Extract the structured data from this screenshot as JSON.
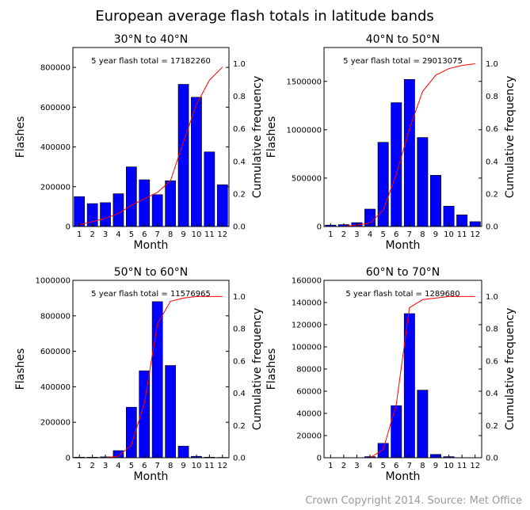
{
  "figure": {
    "title": "European average flash totals in latitude bands",
    "credit": "Crown Copyright 2014. Source: Met Office"
  },
  "colors": {
    "bar": "#0000ff",
    "line": "#ff0000",
    "bar_edge": "#000000"
  },
  "chart_data": [
    {
      "type": "bar",
      "title": "30°N to 40°N",
      "annotation": "5 year flash total = 17182260",
      "xlabel": "Month",
      "ylabel": "Flashes",
      "y2label": "Cumulative frequency",
      "categories": [
        "1",
        "2",
        "3",
        "4",
        "5",
        "6",
        "7",
        "8",
        "9",
        "10",
        "11",
        "12"
      ],
      "series": [
        {
          "values": [
            150000,
            115000,
            120000,
            165000,
            300000,
            235000,
            160000,
            230000,
            715000,
            650000,
            375000,
            210000
          ]
        }
      ],
      "cumulative": [
        0.01,
        0.03,
        0.05,
        0.08,
        0.13,
        0.17,
        0.21,
        0.28,
        0.52,
        0.75,
        0.9,
        0.98
      ],
      "ylim": [
        0,
        900000
      ],
      "yticks": [
        0,
        200000,
        400000,
        600000,
        800000
      ],
      "y2lim": [
        0,
        1.1
      ],
      "y2ticks": [
        0.0,
        0.2,
        0.4,
        0.6,
        0.8,
        1.0
      ]
    },
    {
      "type": "bar",
      "title": "40°N to 50°N",
      "annotation": "5 year flash total = 29013075",
      "xlabel": "Month",
      "ylabel": "Flashes",
      "y2label": "Cumulative frequency",
      "categories": [
        "1",
        "2",
        "3",
        "4",
        "5",
        "6",
        "7",
        "8",
        "9",
        "10",
        "11",
        "12"
      ],
      "series": [
        {
          "values": [
            15000,
            20000,
            40000,
            180000,
            870000,
            1280000,
            1520000,
            920000,
            530000,
            210000,
            120000,
            50000
          ]
        }
      ],
      "cumulative": [
        0.0,
        0.0,
        0.01,
        0.02,
        0.1,
        0.32,
        0.6,
        0.83,
        0.93,
        0.97,
        0.99,
        1.0
      ],
      "ylim": [
        0,
        1850000
      ],
      "yticks": [
        0,
        500000,
        1000000,
        1500000
      ],
      "y2lim": [
        0,
        1.1
      ],
      "y2ticks": [
        0.0,
        0.2,
        0.4,
        0.6,
        0.8,
        1.0
      ]
    },
    {
      "type": "bar",
      "title": "50°N to 60°N",
      "annotation": "5 year flash total = 11576965",
      "xlabel": "Month",
      "ylabel": "Flashes",
      "y2label": "Cumulative frequency",
      "categories": [
        "1",
        "2",
        "3",
        "4",
        "5",
        "6",
        "7",
        "8",
        "9",
        "10",
        "11",
        "12"
      ],
      "series": [
        {
          "values": [
            3000,
            3000,
            5000,
            40000,
            285000,
            490000,
            880000,
            520000,
            65000,
            8000,
            3000,
            2000
          ]
        }
      ],
      "cumulative": [
        0.0,
        0.0,
        0.0,
        0.01,
        0.08,
        0.34,
        0.83,
        0.97,
        0.99,
        1.0,
        1.0,
        1.0
      ],
      "ylim": [
        0,
        1000000
      ],
      "yticks": [
        0,
        200000,
        400000,
        600000,
        800000,
        1000000
      ],
      "y2lim": [
        0,
        1.1
      ],
      "y2ticks": [
        0.0,
        0.2,
        0.4,
        0.6,
        0.8,
        1.0
      ]
    },
    {
      "type": "bar",
      "title": "60°N to 70°N",
      "annotation": "5 year flash total = 1289680",
      "xlabel": "Month",
      "ylabel": "Flashes",
      "y2label": "Cumulative frequency",
      "categories": [
        "1",
        "2",
        "3",
        "4",
        "5",
        "6",
        "7",
        "8",
        "9",
        "10",
        "11",
        "12"
      ],
      "series": [
        {
          "values": [
            0,
            0,
            0,
            1000,
            13000,
            47000,
            130000,
            61000,
            3000,
            1000,
            0,
            0
          ]
        }
      ],
      "cumulative": [
        0.0,
        0.0,
        0.0,
        0.0,
        0.05,
        0.33,
        0.93,
        0.98,
        0.99,
        1.0,
        1.0,
        1.0
      ],
      "ylim": [
        0,
        160000
      ],
      "yticks": [
        0,
        20000,
        40000,
        60000,
        80000,
        100000,
        120000,
        140000,
        160000
      ],
      "y2lim": [
        0,
        1.1
      ],
      "y2ticks": [
        0.0,
        0.2,
        0.4,
        0.6,
        0.8,
        1.0
      ]
    }
  ]
}
